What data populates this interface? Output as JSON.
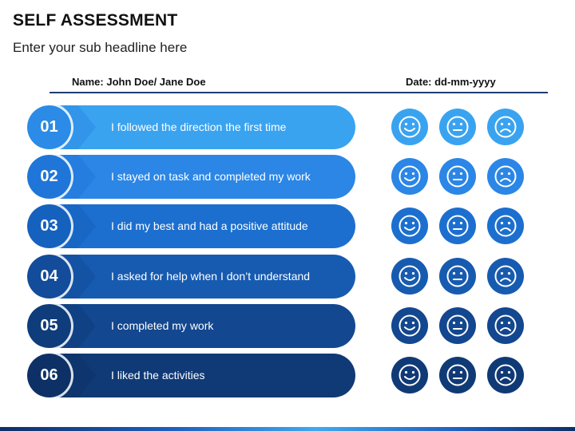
{
  "title": "SELF ASSESSMENT",
  "subtitle": "Enter your sub headline here",
  "header": {
    "name_label": "Name: John Doe/ Jane Doe",
    "date_label": "Date: dd-mm-yyyy"
  },
  "rows": [
    {
      "number": "01",
      "text": "I followed the direction the first time",
      "color": "#3aa3f0",
      "circle_color": "#2b8be6"
    },
    {
      "number": "02",
      "text": "I stayed on task and completed my work",
      "color": "#2b86e6",
      "circle_color": "#1f76d8"
    },
    {
      "number": "03",
      "text": "I did my best and had a positive attitude",
      "color": "#1c6fcf",
      "circle_color": "#1561be"
    },
    {
      "number": "04",
      "text": "I asked for help when I don’t understand",
      "color": "#175bb0",
      "circle_color": "#124c9a"
    },
    {
      "number": "05",
      "text": "I completed my work",
      "color": "#13478f",
      "circle_color": "#0f3c7b"
    },
    {
      "number": "06",
      "text": "I liked the activities",
      "color": "#103a76",
      "circle_color": "#0d3166"
    }
  ],
  "faces": [
    "happy-face-icon",
    "neutral-face-icon",
    "sad-face-icon"
  ]
}
